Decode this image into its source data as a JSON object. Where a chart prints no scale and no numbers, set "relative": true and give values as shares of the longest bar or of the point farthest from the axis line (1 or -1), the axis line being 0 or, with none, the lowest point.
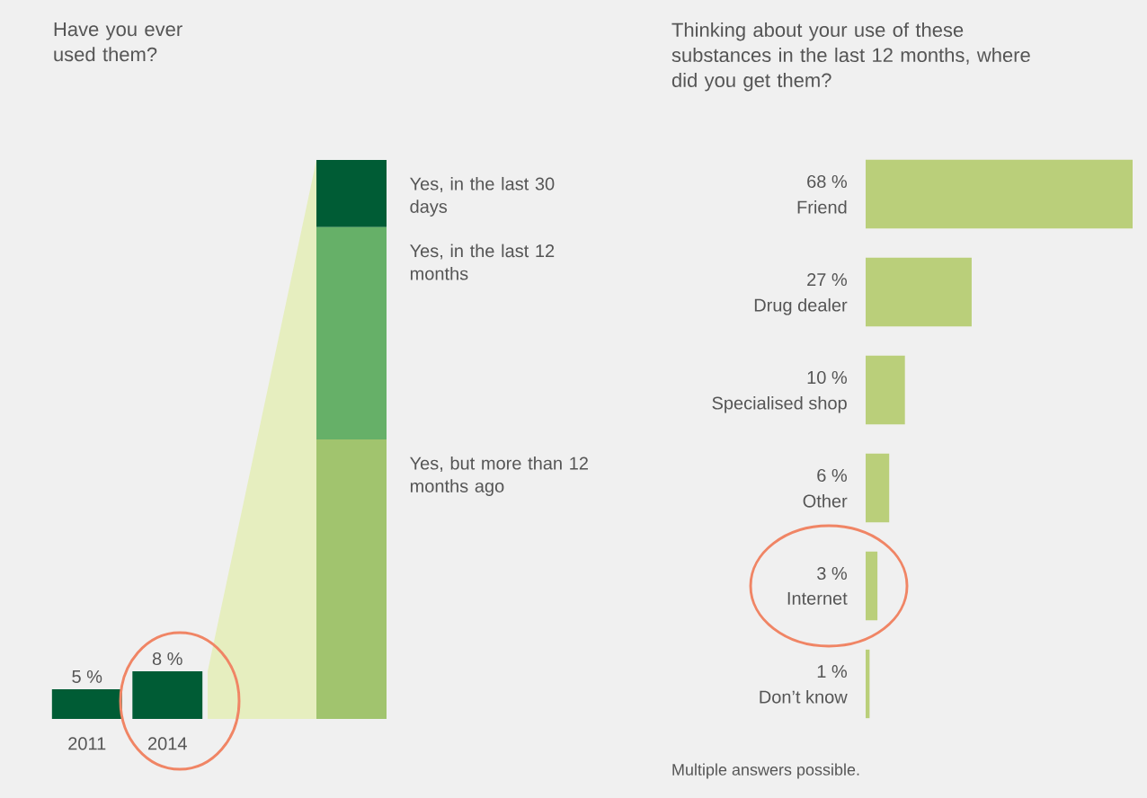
{
  "chart_data": [
    {
      "type": "bar",
      "title": "Have you ever used them?",
      "categories": [
        "2011",
        "2014"
      ],
      "values": [
        5,
        8
      ],
      "value_labels": [
        "5 %",
        "8 %"
      ],
      "color": "#005c35"
    },
    {
      "type": "bar",
      "stacked": true,
      "relative": true,
      "categories": [
        null
      ],
      "series": [
        {
          "name": "Yes, but more than 12 months ago",
          "color": "#a1c46e",
          "values": [
            0.5
          ]
        },
        {
          "name": "Yes, in the last 12 months",
          "color": "#66b068",
          "values": [
            0.38
          ]
        },
        {
          "name": "Yes, in the last 30 days",
          "color": "#005c35",
          "values": [
            0.12
          ]
        }
      ]
    },
    {
      "type": "bar",
      "orientation": "horizontal",
      "title": "Thinking about your use of these substances in the last 12 months, where did you get them?",
      "categories": [
        "Friend",
        "Drug dealer",
        "Specialised shop",
        "Other",
        "Internet",
        "Don’t know"
      ],
      "values": [
        68,
        27,
        10,
        6,
        3,
        1
      ],
      "value_labels": [
        "68 %",
        "27 %",
        "10 %",
        "6 %",
        "3 %",
        "1 %"
      ],
      "color": "#bacf7a",
      "annotations": [
        "Multiple answers possible."
      ]
    }
  ]
}
